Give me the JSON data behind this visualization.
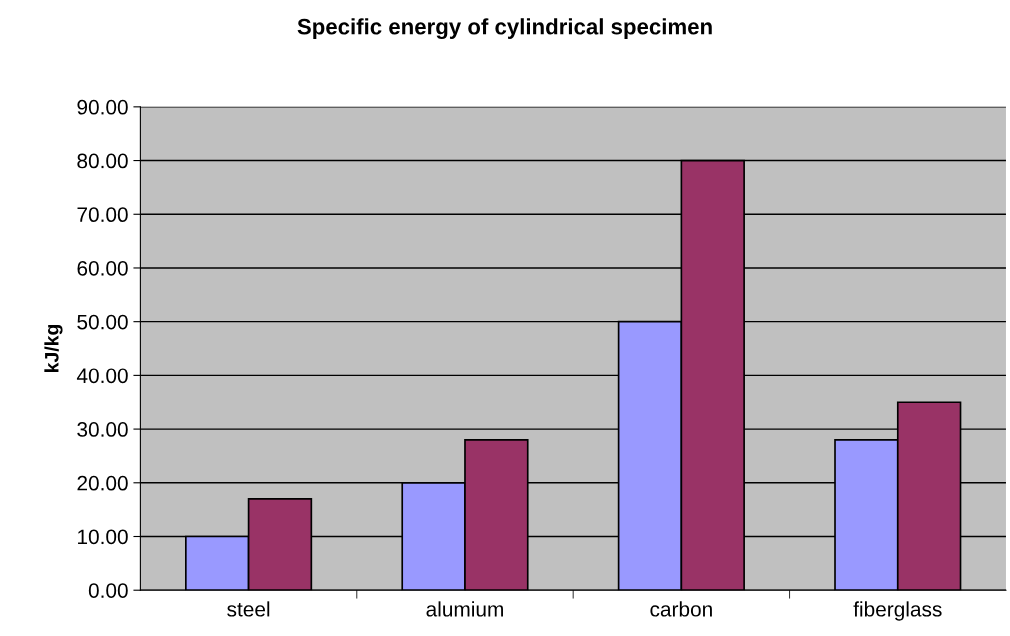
{
  "chart_data": {
    "type": "bar",
    "title": "Specific energy of cylindrical specimen",
    "ylabel": "kJ/kg",
    "categories": [
      "steel",
      "alumium",
      "carbon",
      "fiberglass"
    ],
    "series": [
      {
        "color": "#9999ff",
        "values": [
          10,
          20,
          50,
          28
        ]
      },
      {
        "color": "#993366",
        "values": [
          17,
          28,
          80,
          35
        ]
      }
    ],
    "ylim": [
      0,
      90
    ],
    "yticks": [
      {
        "value": 0,
        "label": "0.00"
      },
      {
        "value": 10,
        "label": "10.00"
      },
      {
        "value": 20,
        "label": "20.00"
      },
      {
        "value": 30,
        "label": "30.00"
      },
      {
        "value": 40,
        "label": "40.00"
      },
      {
        "value": 50,
        "label": "50.00"
      },
      {
        "value": 60,
        "label": "60.00"
      },
      {
        "value": 70,
        "label": "70.00"
      },
      {
        "value": 80,
        "label": "80.00"
      },
      {
        "value": 90,
        "label": "90.00"
      }
    ],
    "grid": "y",
    "legend": false
  }
}
